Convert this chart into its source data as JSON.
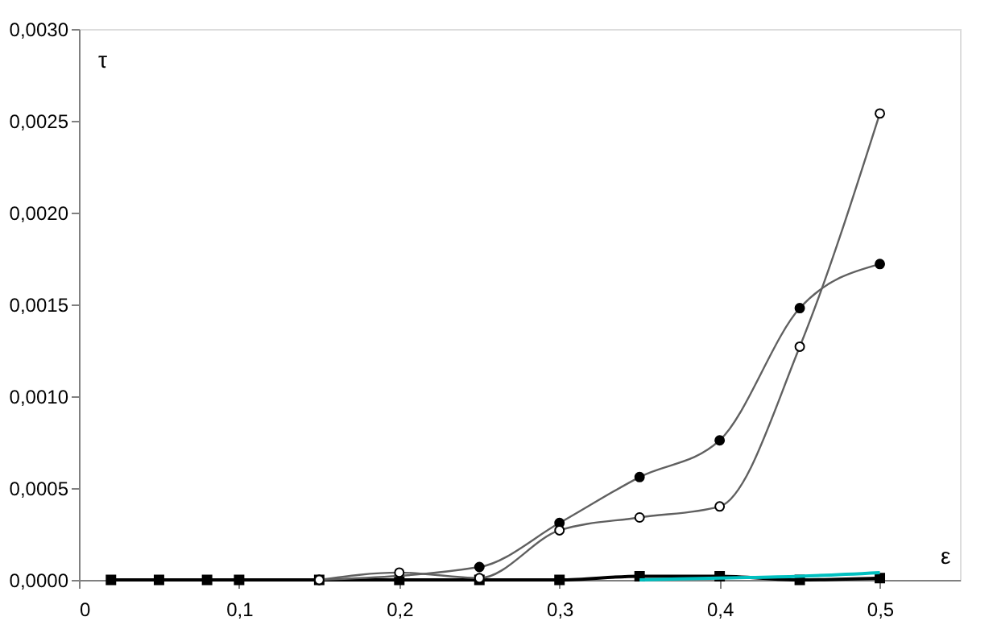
{
  "chart_data": {
    "type": "line",
    "xlabel": "ε",
    "ylabel": "τ",
    "xlim": [
      0,
      0.55
    ],
    "ylim": [
      0,
      0.003
    ],
    "xticks": [
      0,
      {
        "value": 0.1,
        "label": "0,1"
      },
      {
        "value": 0.2,
        "label": "0,2"
      },
      {
        "value": 0.3,
        "label": "0,3"
      },
      {
        "value": 0.4,
        "label": "0,4"
      },
      {
        "value": 0.5,
        "label": "0,5"
      }
    ],
    "yticks": [
      {
        "value": 0,
        "label": "0,0000"
      },
      {
        "value": 0.0005,
        "label": "0,0005"
      },
      {
        "value": 0.001,
        "label": "0,0010"
      },
      {
        "value": 0.0015,
        "label": "0,0015"
      },
      {
        "value": 0.002,
        "label": "0,0020"
      },
      {
        "value": 0.0025,
        "label": "0,0025"
      },
      {
        "value": 0.003,
        "label": "0,0030"
      }
    ],
    "grid": false,
    "series": [
      {
        "color": "#000000",
        "marker": "square",
        "x": [
          0.02,
          0.05,
          0.08,
          0.1,
          0.15,
          0.2,
          0.25,
          0.3,
          0.35,
          0.4,
          0.45,
          0.5
        ],
        "values": [
          0,
          0,
          0,
          0,
          0,
          0,
          0,
          0,
          2e-05,
          2e-05,
          0,
          1e-05
        ]
      },
      {
        "color": "#00c0c0",
        "marker": "none",
        "x": [
          0.35,
          0.4,
          0.45,
          0.5
        ],
        "values": [
          0,
          1e-05,
          2e-05,
          4e-05
        ]
      },
      {
        "color": "#000000",
        "marker": "circle",
        "x": [
          0.15,
          0.25,
          0.3,
          0.35,
          0.4,
          0.45,
          0.5
        ],
        "values": [
          0,
          7e-05,
          0.00031,
          0.00056,
          0.00076,
          0.00148,
          0.00172
        ]
      },
      {
        "color": "#ffffff",
        "marker": "circle",
        "x": [
          0.15,
          0.2,
          0.25,
          0.3,
          0.35,
          0.4,
          0.45,
          0.5
        ],
        "values": [
          0,
          4e-05,
          1e-05,
          0.00027,
          0.00034,
          0.0004,
          0.00127,
          0.00254
        ]
      }
    ]
  }
}
